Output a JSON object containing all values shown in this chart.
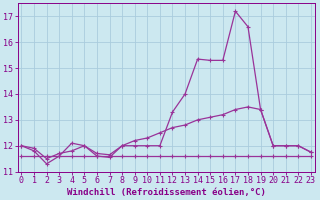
{
  "xlabel": "Windchill (Refroidissement éolien,°C)",
  "bg_color": "#cce8f0",
  "grid_color": "#aaccdd",
  "line_color": "#993399",
  "x": [
    0,
    1,
    2,
    3,
    4,
    5,
    6,
    7,
    8,
    9,
    10,
    11,
    12,
    13,
    14,
    15,
    16,
    17,
    18,
    19,
    20,
    21,
    22,
    23
  ],
  "series1": [
    12.0,
    11.8,
    11.3,
    11.6,
    12.1,
    12.0,
    11.6,
    11.55,
    12.0,
    12.0,
    12.0,
    12.0,
    13.3,
    14.0,
    15.35,
    15.3,
    15.3,
    17.2,
    16.6,
    13.4,
    12.0,
    12.0,
    12.0,
    11.75
  ],
  "series2": [
    11.6,
    11.6,
    11.6,
    11.6,
    11.6,
    11.6,
    11.6,
    11.6,
    11.6,
    11.6,
    11.6,
    11.6,
    11.6,
    11.6,
    11.6,
    11.6,
    11.6,
    11.6,
    11.6,
    11.6,
    11.6,
    11.6,
    11.6,
    11.6
  ],
  "series3": [
    12.0,
    11.9,
    11.5,
    11.7,
    11.8,
    12.0,
    11.7,
    11.65,
    12.0,
    12.2,
    12.3,
    12.5,
    12.7,
    12.8,
    13.0,
    13.1,
    13.2,
    13.4,
    13.5,
    13.4,
    12.0,
    12.0,
    12.0,
    11.75
  ],
  "ylim_min": 11.0,
  "ylim_max": 17.5,
  "yticks": [
    11,
    12,
    13,
    14,
    15,
    16,
    17
  ],
  "font_color": "#880088",
  "xlabel_fontsize": 6.5,
  "tick_fontsize": 6.0,
  "lw": 0.9,
  "ms": 2.5
}
